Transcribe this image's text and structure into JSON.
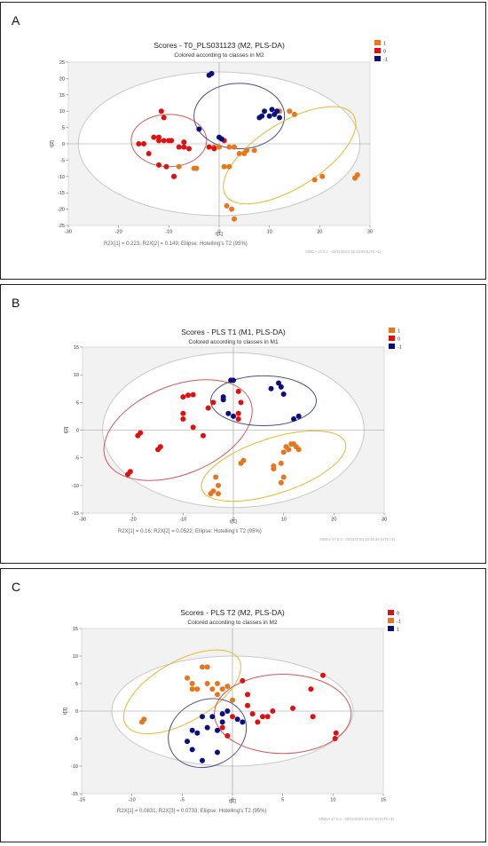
{
  "panels": [
    {
      "letter": "A",
      "title": "Scores - T0_PLS031123 (M2, PLS-DA)",
      "subtitle": "Colored according to classes in M2",
      "footer": "R2X[1] = 0.223; R2X[2] = 0.149; Ellipse: Hotelling's T2 (95%)",
      "watermark": "SIMCA 17.0.2 - 03/11/2023 15:34:59 (UTC+1)",
      "xlabel": "t[1]",
      "ylabel": "t[2]"
    },
    {
      "letter": "B",
      "title": "Scores - PLS T1 (M1, PLS-DA)",
      "subtitle": "Colored according to classes in M1",
      "footer": "R2X[1] = 0.16; R2X[2] = 0.0522; Ellipse: Hotelling's T2 (95%)",
      "watermark": "SIMCA 17.0.2 - 03/11/2023 15:45:34 (UTC+1)",
      "xlabel": "t[1]",
      "ylabel": "t[2]"
    },
    {
      "letter": "C",
      "title": "Scores - PLS T2 (M2, PLS-DA)",
      "subtitle": "Colored according to classes in M2",
      "footer": "R2X[1] = 0.0831; R2X[3] = 0.0733; Ellipse: Hotelling's T2 (95%)",
      "watermark": "SIMCA 17.0.2 - 03/11/2023 16:03:19 (UTC+1)",
      "xlabel": "t[1]",
      "ylabel": "t[3]"
    }
  ],
  "chart_data": [
    {
      "type": "scatter",
      "title": "Scores - T0_PLS031123 (M2, PLS-DA)",
      "subtitle": "Colored according to classes in M2",
      "xlabel": "t[1]",
      "ylabel": "t[2]",
      "xlim": [
        -30,
        30
      ],
      "ylim": [
        -25,
        25
      ],
      "xticks": [
        -30,
        -20,
        -10,
        0,
        10,
        20,
        30
      ],
      "yticks": [
        -25,
        -20,
        -15,
        -10,
        -5,
        0,
        5,
        10,
        15,
        20,
        25
      ],
      "grid": false,
      "legend_position": "top-right",
      "legend": [
        {
          "label": "1",
          "color": "#e8761e"
        },
        {
          "label": "0",
          "color": "#e01010"
        },
        {
          "label": "-1",
          "color": "#0a0f80"
        }
      ],
      "hotelling_ellipse": {
        "cx": 0,
        "cy": 0,
        "rx": 28,
        "ry": 22
      },
      "class_ellipses": [
        {
          "class": "0",
          "cx": -10,
          "cy": 1,
          "rx": 7.5,
          "ry": 8,
          "angle": 0,
          "color": "#d05858"
        },
        {
          "class": "-1",
          "cx": 4,
          "cy": 8.5,
          "rx": 9,
          "ry": 10,
          "angle": 0,
          "color": "#4a5080"
        },
        {
          "class": "1",
          "cx": 14,
          "cy": -3.5,
          "rx": 15,
          "ry": 10,
          "angle": 32,
          "color": "#e8b830"
        }
      ],
      "series": [
        {
          "name": "1",
          "color": "#e8761e",
          "points": [
            [
              -8,
              -7
            ],
            [
              -5,
              -7.5
            ],
            [
              -4.5,
              -7.5
            ],
            [
              -1,
              -1
            ],
            [
              0,
              -1
            ],
            [
              1,
              -7
            ],
            [
              2,
              -7
            ],
            [
              2,
              -1
            ],
            [
              3,
              -1
            ],
            [
              4,
              -3
            ],
            [
              5,
              -3
            ],
            [
              5.5,
              -2
            ],
            [
              1.5,
              -19
            ],
            [
              2.5,
              -20
            ],
            [
              3,
              -23
            ],
            [
              7,
              -2
            ],
            [
              12,
              10
            ],
            [
              14,
              10
            ],
            [
              15,
              9
            ],
            [
              19,
              -11
            ],
            [
              20.5,
              -10
            ],
            [
              27,
              -10.5
            ],
            [
              27.5,
              -9.5
            ],
            [
              -9,
              -10
            ]
          ]
        },
        {
          "name": "0",
          "color": "#e01010",
          "points": [
            [
              -16,
              0
            ],
            [
              -15,
              0
            ],
            [
              -14,
              -3
            ],
            [
              -13,
              2
            ],
            [
              -12,
              1
            ],
            [
              -11,
              1
            ],
            [
              -10,
              1
            ],
            [
              -11.5,
              10
            ],
            [
              -11,
              8
            ],
            [
              -12,
              -6.5
            ],
            [
              -10.5,
              -7
            ],
            [
              -8,
              -1
            ],
            [
              -7,
              -1
            ],
            [
              -9,
              -10
            ],
            [
              -2,
              -1
            ],
            [
              -1,
              -1.5
            ],
            [
              1,
              1
            ],
            [
              -12,
              2
            ],
            [
              -9.5,
              1
            ],
            [
              -7,
              0.5
            ],
            [
              -6,
              -1.5
            ]
          ]
        },
        {
          "name": "-1",
          "color": "#0a0f80",
          "points": [
            [
              -2,
              21
            ],
            [
              -1.5,
              21.5
            ],
            [
              -4,
              4.5
            ],
            [
              0,
              2
            ],
            [
              0.5,
              1.5
            ],
            [
              8,
              8
            ],
            [
              8.5,
              8.5
            ],
            [
              9,
              10
            ],
            [
              10,
              8.5
            ],
            [
              10.5,
              10.5
            ],
            [
              11,
              9
            ],
            [
              11.5,
              10
            ],
            [
              12,
              8
            ]
          ]
        }
      ]
    },
    {
      "type": "scatter",
      "title": "Scores - PLS T1 (M1, PLS-DA)",
      "subtitle": "Colored according to classes in M1",
      "xlabel": "t[1]",
      "ylabel": "t[2]",
      "xlim": [
        -30,
        30
      ],
      "ylim": [
        -15,
        15
      ],
      "xticks": [
        -30,
        -20,
        -10,
        0,
        10,
        20,
        30
      ],
      "yticks": [
        -15,
        -10,
        -5,
        0,
        5,
        10,
        15
      ],
      "grid": false,
      "legend_position": "top-right",
      "legend": [
        {
          "label": "1",
          "color": "#e8761e"
        },
        {
          "label": "0",
          "color": "#e01010"
        },
        {
          "label": "-1",
          "color": "#0a0f80"
        }
      ],
      "hotelling_ellipse": {
        "cx": 0,
        "cy": 0,
        "rx": 26,
        "ry": 14
      },
      "class_ellipses": [
        {
          "class": "0",
          "cx": -11,
          "cy": 0,
          "rx": 15.5,
          "ry": 8,
          "angle": 22,
          "color": "#d05858"
        },
        {
          "class": "-1",
          "cx": 6,
          "cy": 5.3,
          "rx": 10.5,
          "ry": 4.5,
          "angle": 0,
          "color": "#4a5080"
        },
        {
          "class": "1",
          "cx": 8,
          "cy": -6.5,
          "rx": 15,
          "ry": 5,
          "angle": 18,
          "color": "#e8b830"
        }
      ],
      "series": [
        {
          "name": "1",
          "color": "#e8761e",
          "points": [
            [
              -4.5,
              -11.5
            ],
            [
              -4,
              -11
            ],
            [
              -3.5,
              -8.5
            ],
            [
              -3,
              -10
            ],
            [
              -3,
              -11.5
            ],
            [
              1.5,
              -6
            ],
            [
              2,
              -5.5
            ],
            [
              8,
              -7
            ],
            [
              8,
              -6.5
            ],
            [
              9.5,
              -6
            ],
            [
              10,
              -4
            ],
            [
              10.5,
              -3
            ],
            [
              11,
              -3.5
            ],
            [
              11.5,
              -2.5
            ],
            [
              12,
              -2.5
            ],
            [
              12.5,
              -3
            ],
            [
              13,
              -3.5
            ],
            [
              9.5,
              -9.5
            ],
            [
              10,
              -8.5
            ]
          ]
        },
        {
          "name": "0",
          "color": "#e01010",
          "points": [
            [
              -21,
              -8
            ],
            [
              -20.5,
              -7.5
            ],
            [
              -19,
              -1
            ],
            [
              -18.5,
              -0.5
            ],
            [
              -15,
              -3.5
            ],
            [
              -14.5,
              -3
            ],
            [
              -10,
              6
            ],
            [
              -9,
              6.3
            ],
            [
              -8,
              6.4
            ],
            [
              -10,
              3
            ],
            [
              -10,
              2
            ],
            [
              -8,
              0.5
            ],
            [
              -6,
              -1
            ],
            [
              -5,
              4
            ],
            [
              -4,
              5
            ],
            [
              1,
              7
            ],
            [
              1.5,
              5
            ],
            [
              1,
              3
            ],
            [
              1,
              2
            ]
          ]
        },
        {
          "name": "-1",
          "color": "#0a0f80",
          "points": [
            [
              -2,
              6
            ],
            [
              -2,
              5.5
            ],
            [
              -0.5,
              9
            ],
            [
              0,
              9
            ],
            [
              -1,
              3
            ],
            [
              0,
              2.5
            ],
            [
              7.5,
              7.5
            ],
            [
              9,
              8.5
            ],
            [
              9.5,
              7.8
            ],
            [
              10,
              6.5
            ],
            [
              12,
              2
            ],
            [
              13,
              2.5
            ]
          ]
        }
      ]
    },
    {
      "type": "scatter",
      "title": "Scores - PLS T2 (M2, PLS-DA)",
      "subtitle": "Colored according to classes in M2",
      "xlabel": "t[1]",
      "ylabel": "t[3]",
      "xlim": [
        -15,
        15
      ],
      "ylim": [
        -15,
        15
      ],
      "xticks": [
        -15,
        -10,
        -5,
        0,
        5,
        10,
        15
      ],
      "yticks": [
        -15,
        -10,
        -5,
        0,
        5,
        10,
        15
      ],
      "grid": false,
      "legend_position": "top-right",
      "legend": [
        {
          "label": "0",
          "color": "#e01010"
        },
        {
          "label": "-1",
          "color": "#e8761e"
        },
        {
          "label": "1",
          "color": "#0a0f80"
        }
      ],
      "hotelling_ellipse": {
        "cx": 0,
        "cy": 0,
        "rx": 12,
        "ry": 10
      },
      "class_ellipses": [
        {
          "class": "-1",
          "cx": -5,
          "cy": 3.5,
          "rx": 6.5,
          "ry": 5.5,
          "angle": 30,
          "color": "#e8b830"
        },
        {
          "class": "1",
          "cx": -2.5,
          "cy": -4,
          "rx": 4,
          "ry": 6,
          "angle": 25,
          "color": "#4a5080"
        },
        {
          "class": "0",
          "cx": 5,
          "cy": -0.5,
          "rx": 6.8,
          "ry": 7.2,
          "angle": 0,
          "color": "#d05858"
        }
      ],
      "series": [
        {
          "name": "0",
          "color": "#e01010",
          "points": [
            [
              -1,
              -3
            ],
            [
              -0.5,
              -4.5
            ],
            [
              0,
              -1
            ],
            [
              1,
              5.5
            ],
            [
              1.5,
              3
            ],
            [
              1.5,
              1
            ],
            [
              2,
              -0.5
            ],
            [
              2.5,
              -2
            ],
            [
              3,
              -1
            ],
            [
              3.5,
              -1
            ],
            [
              4,
              0
            ],
            [
              6,
              0.5
            ],
            [
              7.8,
              4
            ],
            [
              8,
              -1
            ],
            [
              9,
              6.5
            ],
            [
              10.3,
              -4
            ],
            [
              10.2,
              -5
            ]
          ]
        },
        {
          "name": "-1",
          "color": "#e8761e",
          "points": [
            [
              -9,
              -2
            ],
            [
              -8.8,
              -1.5
            ],
            [
              -4.5,
              6
            ],
            [
              -4,
              5
            ],
            [
              -3.5,
              4
            ],
            [
              -3,
              8
            ],
            [
              -2.5,
              8
            ],
            [
              -2.5,
              5
            ],
            [
              -2,
              4
            ],
            [
              -1.5,
              5
            ],
            [
              -1.5,
              3
            ],
            [
              -1,
              4
            ],
            [
              -4,
              4
            ],
            [
              -0.5,
              4.5
            ],
            [
              0,
              2
            ]
          ]
        },
        {
          "name": "1",
          "color": "#0a0f80",
          "points": [
            [
              -4.5,
              -5.5
            ],
            [
              -4,
              -3.5
            ],
            [
              -4,
              -7
            ],
            [
              -3.5,
              -4
            ],
            [
              -3,
              -1
            ],
            [
              -3,
              -9
            ],
            [
              -2.5,
              -3
            ],
            [
              -2,
              -1
            ],
            [
              -1.5,
              -3.5
            ],
            [
              -1,
              -0.5
            ],
            [
              -0.5,
              0
            ],
            [
              -1,
              -2
            ],
            [
              -1.5,
              -7.5
            ],
            [
              0.5,
              -1.5
            ],
            [
              1,
              -2
            ]
          ]
        }
      ]
    }
  ]
}
